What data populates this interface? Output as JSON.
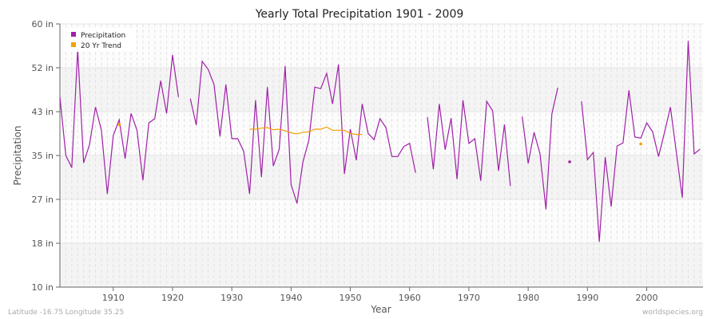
{
  "chart_data": {
    "type": "line",
    "title": "Yearly Total Precipitation 1901 - 2009",
    "xlabel": "Year",
    "ylabel": "Precipitation",
    "xlim": [
      1901,
      2009
    ],
    "ylim": [
      10,
      60
    ],
    "yticks": [
      {
        "v": 10,
        "label": "10 in"
      },
      {
        "v": 18.33,
        "label": "18 in"
      },
      {
        "v": 26.67,
        "label": "27 in"
      },
      {
        "v": 35,
        "label": "35 in"
      },
      {
        "v": 43.33,
        "label": "43 in"
      },
      {
        "v": 51.67,
        "label": "52 in"
      },
      {
        "v": 60,
        "label": "60 in"
      }
    ],
    "xticks": [
      1910,
      1920,
      1930,
      1940,
      1950,
      1960,
      1970,
      1980,
      1990,
      2000
    ],
    "legend": {
      "position": "top-left",
      "entries": [
        "Precipitation",
        "20 Yr Trend"
      ]
    },
    "series": [
      {
        "name": "Precipitation",
        "color": "#a020a8",
        "start_year": 1901,
        "values": [
          46.1,
          35.0,
          32.7,
          55.2,
          33.6,
          37.1,
          44.2,
          39.8,
          27.7,
          38.8,
          41.8,
          34.4,
          43.0,
          39.8,
          30.3,
          41.2,
          42.0,
          49.2,
          43.0,
          54.1,
          46.1,
          null,
          45.8,
          40.8,
          52.9,
          51.4,
          48.5,
          38.6,
          48.5,
          38.2,
          38.2,
          35.8,
          27.7,
          45.5,
          30.9,
          48.0,
          33.0,
          36.2,
          52.0,
          29.5,
          25.9,
          33.8,
          37.9,
          48.0,
          47.7,
          50.6,
          44.8,
          52.3,
          31.5,
          40.0,
          34.1,
          44.8,
          39.2,
          38.0,
          42.0,
          40.3,
          34.8,
          34.8,
          36.7,
          37.3,
          31.7,
          null,
          42.3,
          32.4,
          44.8,
          36.1,
          42.1,
          30.5,
          45.5,
          37.3,
          38.2,
          30.2,
          45.3,
          43.5,
          32.1,
          40.9,
          29.2,
          null,
          42.4,
          33.5,
          39.4,
          35.3,
          24.8,
          42.9,
          47.9,
          null,
          33.8,
          null,
          45.3,
          34.2,
          35.6,
          18.6,
          34.7,
          25.3,
          36.8,
          37.4,
          47.4,
          38.5,
          38.3,
          41.2,
          39.5,
          34.8,
          39.4,
          44.2,
          35.6,
          27.0,
          56.8,
          35.3,
          36.2
        ]
      },
      {
        "name": "20 Yr Trend",
        "color": "#f5a000",
        "points": [
          [
            1911,
            40.9
          ],
          [
            1933,
            40.0
          ],
          [
            1934,
            40.0
          ],
          [
            1935,
            40.2
          ],
          [
            1936,
            40.3
          ],
          [
            1937,
            39.9
          ],
          [
            1938,
            40.0
          ],
          [
            1939,
            39.7
          ],
          [
            1940,
            39.3
          ],
          [
            1941,
            39.1
          ],
          [
            1942,
            39.4
          ],
          [
            1943,
            39.5
          ],
          [
            1944,
            40.0
          ],
          [
            1945,
            40.0
          ],
          [
            1946,
            40.4
          ],
          [
            1947,
            39.8
          ],
          [
            1948,
            39.8
          ],
          [
            1949,
            39.8
          ],
          [
            1950,
            39.2
          ],
          [
            1951,
            39.0
          ],
          [
            1952,
            39.0
          ],
          [
            1999,
            37.2
          ]
        ]
      }
    ]
  },
  "footer": {
    "location": "Latitude -16.75 Longitude 35.25",
    "site": "worldspecies.org"
  }
}
